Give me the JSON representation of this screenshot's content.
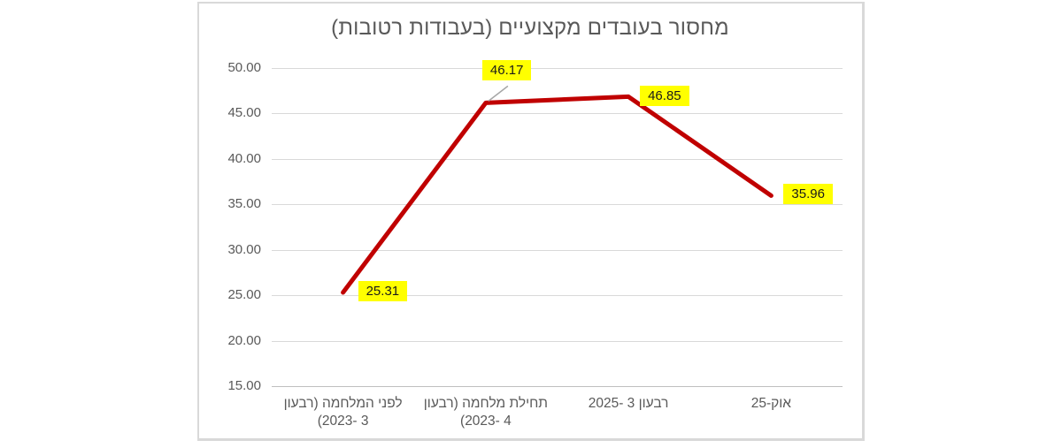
{
  "chart_data": {
    "type": "line",
    "title": "מחסור בעובדים מקצועיים (בעבודות רטובות)",
    "categories": [
      "לפני המלחמה (רבעון\n3 -2023)",
      "תחילת מלחמה (רבעון\n4 -2023)",
      "רבעון 3 -2025",
      "אוק-25"
    ],
    "values": [
      25.31,
      46.17,
      46.85,
      35.96
    ],
    "data_labels": [
      "25.31",
      "46.17",
      "46.85",
      "35.96"
    ],
    "yticks": [
      "50.00",
      "45.00",
      "40.00",
      "35.00",
      "30.00",
      "25.00",
      "20.00",
      "15.00"
    ],
    "ylim": [
      15,
      50
    ],
    "xlabel": "",
    "ylabel": "",
    "grid": true,
    "legend": false,
    "colors": {
      "line": "#C00000",
      "data_label_bg": "#FFFF00",
      "data_label_text": "#1A1A1A",
      "axis_text": "#595959",
      "gridline": "#D9D9D9",
      "axis_line": "#BFBFBF",
      "leader_line": "#A6A6A6",
      "chart_border": "#D9D9D9",
      "background": "#FFFFFF"
    }
  }
}
